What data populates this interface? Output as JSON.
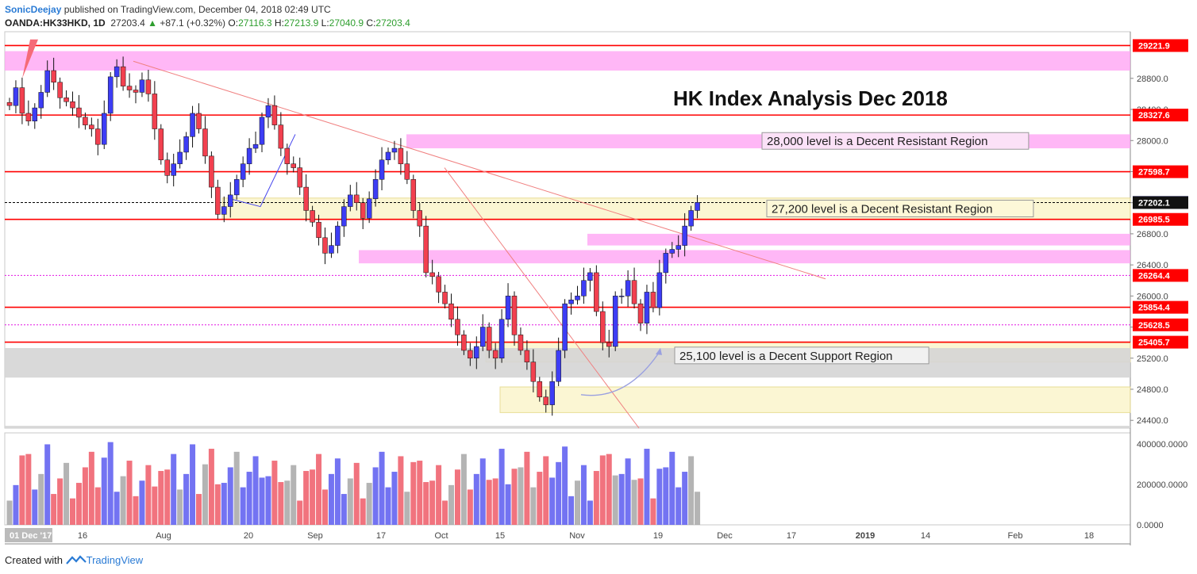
{
  "header": {
    "author": "SonicDeejay",
    "published": "published on TradingView.com, December 04, 2018 02:49 UTC",
    "symbol": "OANDA:HK33HKD, 1D",
    "last": "27203.4",
    "change": "+87.1 (+0.32%)",
    "o_label": "O:",
    "o": "27116.3",
    "h_label": "H:",
    "h": "27213.9",
    "l_label": "L:",
    "l": "27040.9",
    "c_label": "C:",
    "c": "27203.4"
  },
  "footer": {
    "created_with": "Created with",
    "brand": "TradingView"
  },
  "colors": {
    "up": "#3d3df5",
    "down": "#f2404f",
    "resistance_line": "#ff0000",
    "pink_zone": "#ff9ff3",
    "yellow_zone": "#fbf6cf",
    "gray_zone": "#d5d5d5",
    "dotted_line": "#e414e4",
    "vol_gray": "#a7a7a7"
  },
  "chart_data": {
    "type": "candlestick",
    "title": "HK Index Analysis Dec 2018",
    "y_range": [
      24300,
      29400
    ],
    "y_ticks": [
      24400,
      24800,
      25200,
      25600,
      26000,
      26400,
      26800,
      27200,
      27600,
      28000,
      28400,
      28800
    ],
    "x_ticks": [
      "01 Dec '17",
      "16",
      "Aug",
      "20",
      "Sep",
      "17",
      "Oct",
      "15",
      "Nov",
      "19",
      "Dec",
      "17",
      "2019",
      "14",
      "Feb",
      "18"
    ],
    "price_labels": [
      {
        "value": 29221.9,
        "style": "red"
      },
      {
        "value": 28327.6,
        "style": "red"
      },
      {
        "value": 27598.7,
        "style": "red"
      },
      {
        "value": 27203.4,
        "style": "blue"
      },
      {
        "value": 27202.1,
        "style": "black"
      },
      {
        "value": 26985.5,
        "style": "red"
      },
      {
        "value": 26264.4,
        "style": "red"
      },
      {
        "value": 25854.4,
        "style": "red"
      },
      {
        "value": 25628.5,
        "style": "red"
      },
      {
        "value": 25405.7,
        "style": "red"
      }
    ],
    "horizontal_lines": [
      {
        "value": 29221.9,
        "style": "solid"
      },
      {
        "value": 28327.6,
        "style": "solid"
      },
      {
        "value": 27598.7,
        "style": "solid"
      },
      {
        "value": 26985.5,
        "style": "solid"
      },
      {
        "value": 25854.4,
        "style": "solid"
      },
      {
        "value": 25405.7,
        "style": "solid"
      },
      {
        "value": 26264.4,
        "style": "dotted-magenta"
      },
      {
        "value": 25628.5,
        "style": "dotted-magenta"
      },
      {
        "value": 27202.1,
        "style": "dashed-black"
      }
    ],
    "zones": [
      {
        "color": "pink",
        "from": 28900,
        "to": 29150
      },
      {
        "color": "pink",
        "from": 27900,
        "to": 28080
      },
      {
        "color": "pink",
        "from": 26650,
        "to": 26800
      },
      {
        "color": "pink",
        "from": 26420,
        "to": 26590
      },
      {
        "color": "yellow",
        "from": 26990,
        "to": 27260
      },
      {
        "color": "yellow",
        "from": 25150,
        "to": 25400
      },
      {
        "color": "yellow",
        "from": 24500,
        "to": 24830
      },
      {
        "color": "gray",
        "from": 24950,
        "to": 25330
      },
      {
        "color": "gray",
        "from": 24300,
        "to": 24330
      }
    ],
    "annotations": [
      {
        "text": "28,000 level is a Decent Resistant Region"
      },
      {
        "text": "27,200 level is a Decent Resistant Region"
      },
      {
        "text": "25,100 level is a Decent Support Region"
      }
    ],
    "volume_ticks": [
      "400000.0000",
      "200000.0000",
      "0.0000"
    ],
    "volume_range": [
      0,
      440000
    ],
    "close_series": [
      28450,
      28680,
      28350,
      28250,
      28420,
      28620,
      28900,
      28750,
      28550,
      28500,
      28420,
      28300,
      28200,
      28150,
      27950,
      28350,
      28820,
      28950,
      28700,
      28650,
      28620,
      28780,
      28600,
      28150,
      27750,
      27550,
      27700,
      27850,
      28050,
      28350,
      28150,
      27800,
      27400,
      27050,
      27150,
      27300,
      27500,
      27700,
      27900,
      27950,
      28300,
      28450,
      28200,
      27900,
      27700,
      27650,
      27400,
      27100,
      26950,
      26750,
      26550,
      26650,
      26900,
      27150,
      27300,
      27200,
      27000,
      27250,
      27500,
      27750,
      27850,
      27900,
      27700,
      27500,
      27100,
      26900,
      26300,
      26250,
      26050,
      25900,
      25700,
      25500,
      25300,
      25200,
      25350,
      25600,
      25300,
      25200,
      25700,
      26000,
      25500,
      25300,
      25150,
      24900,
      24700,
      24600,
      24900,
      25300,
      25900,
      25950,
      26000,
      26200,
      26300,
      25800,
      25400,
      25350,
      26000,
      26000,
      26200,
      25900,
      25650,
      26050,
      25850,
      26300,
      26550,
      26600,
      26650,
      26900,
      27100,
      27203
    ]
  }
}
